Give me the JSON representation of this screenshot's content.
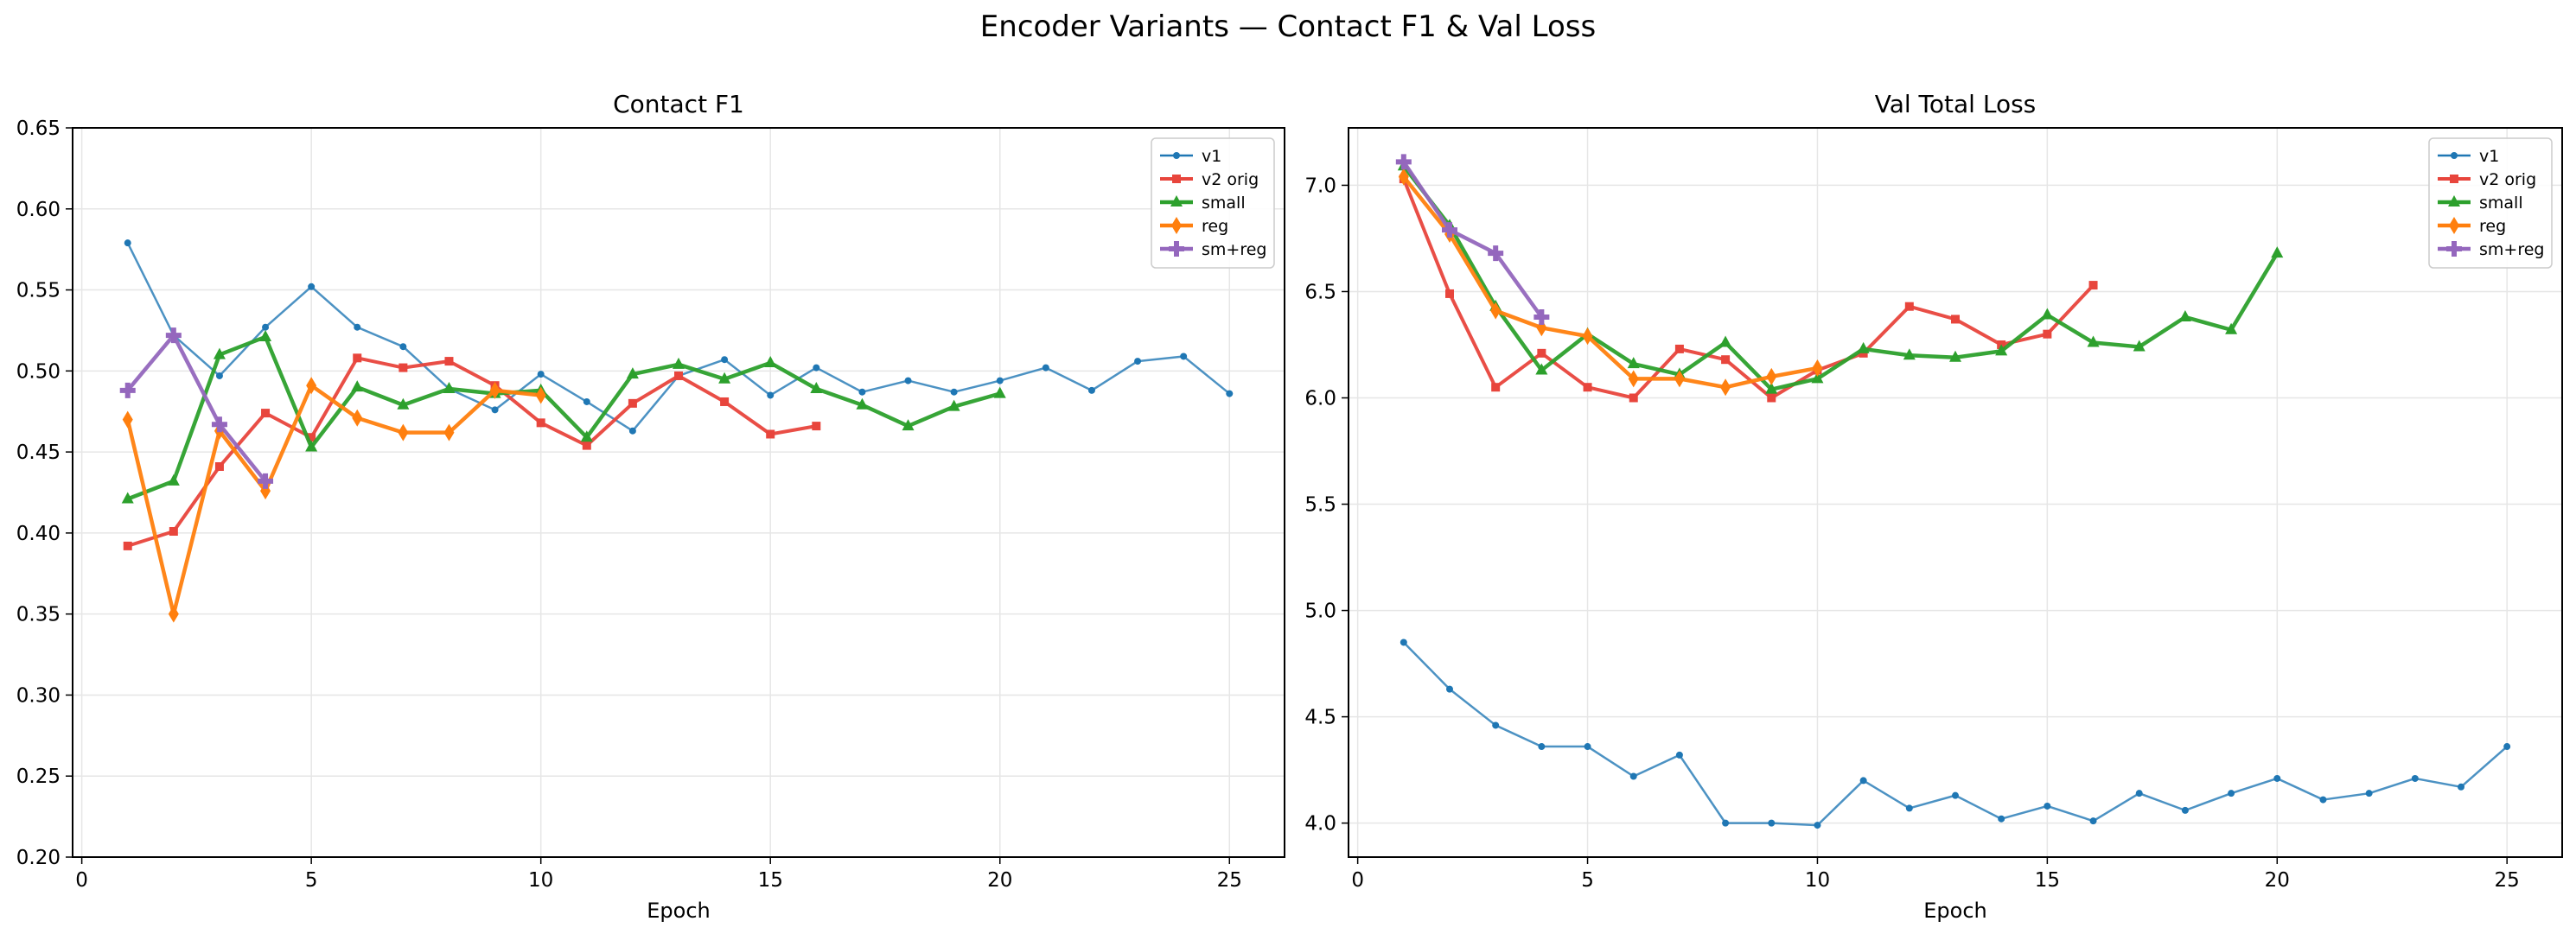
{
  "suptitle": "Encoder Variants — Contact F1 & Val Loss",
  "chart_data": [
    {
      "type": "line",
      "title": "Contact F1",
      "xlabel": "Epoch",
      "ylabel": "",
      "xlim": [
        -0.2,
        26.2
      ],
      "ylim": [
        0.2,
        0.65
      ],
      "xticks": [
        0,
        5,
        10,
        15,
        20,
        25
      ],
      "yticks": [
        0.2,
        0.25,
        0.3,
        0.35,
        0.4,
        0.45,
        0.5,
        0.55,
        0.6,
        0.65
      ],
      "ytick_decimals": 2,
      "grid": true,
      "legend": "top-right",
      "series": [
        {
          "name": "v1",
          "color": "#1f77b4",
          "marker": "circle",
          "x": [
            1,
            2,
            3,
            4,
            5,
            6,
            7,
            8,
            9,
            10,
            11,
            12,
            13,
            14,
            15,
            16,
            17,
            18,
            19,
            20,
            21,
            22,
            23,
            24,
            25
          ],
          "values": [
            0.579,
            0.522,
            0.497,
            0.527,
            0.552,
            0.527,
            0.515,
            0.489,
            0.476,
            0.498,
            0.481,
            0.463,
            0.497,
            0.507,
            0.485,
            0.502,
            0.487,
            0.494,
            0.487,
            0.494,
            0.502,
            0.488,
            0.506,
            0.509,
            0.486
          ]
        },
        {
          "name": "v2 orig",
          "color": "#e8453c",
          "marker": "square",
          "x": [
            1,
            2,
            3,
            4,
            5,
            6,
            7,
            8,
            9,
            10,
            11,
            12,
            13,
            14,
            15,
            16
          ],
          "values": [
            0.392,
            0.401,
            0.441,
            0.474,
            0.459,
            0.508,
            0.502,
            0.506,
            0.491,
            0.468,
            0.454,
            0.48,
            0.497,
            0.481,
            0.461,
            0.466
          ]
        },
        {
          "name": "small",
          "color": "#2ca02c",
          "marker": "triangle",
          "x": [
            1,
            2,
            3,
            4,
            5,
            6,
            7,
            8,
            9,
            10,
            11,
            12,
            13,
            14,
            15,
            16,
            17,
            18,
            19,
            20
          ],
          "values": [
            0.421,
            0.432,
            0.51,
            0.521,
            0.453,
            0.49,
            0.479,
            0.489,
            0.486,
            0.488,
            0.459,
            0.498,
            0.504,
            0.495,
            0.505,
            0.489,
            0.479,
            0.466,
            0.478,
            0.486
          ]
        },
        {
          "name": "reg",
          "color": "#ff7f0e",
          "marker": "diamond",
          "x": [
            1,
            2,
            3,
            4,
            5,
            6,
            7,
            8,
            9,
            10
          ],
          "values": [
            0.47,
            0.35,
            0.463,
            0.426,
            0.491,
            0.471,
            0.462,
            0.462,
            0.488,
            0.485
          ]
        },
        {
          "name": "sm+reg",
          "color": "#9467bd",
          "marker": "plus",
          "x": [
            1,
            2,
            3,
            4
          ],
          "values": [
            0.488,
            0.522,
            0.467,
            0.432
          ]
        }
      ]
    },
    {
      "type": "line",
      "title": "Val Total Loss",
      "xlabel": "Epoch",
      "ylabel": "",
      "xlim": [
        -0.2,
        26.2
      ],
      "ylim": [
        3.84,
        7.27
      ],
      "xticks": [
        0,
        5,
        10,
        15,
        20,
        25
      ],
      "yticks": [
        4.0,
        4.5,
        5.0,
        5.5,
        6.0,
        6.5,
        7.0
      ],
      "ytick_decimals": 1,
      "grid": true,
      "legend": "top-right",
      "series": [
        {
          "name": "v1",
          "color": "#1f77b4",
          "marker": "circle",
          "x": [
            1,
            2,
            3,
            4,
            5,
            6,
            7,
            8,
            9,
            10,
            11,
            12,
            13,
            14,
            15,
            16,
            17,
            18,
            19,
            20,
            21,
            22,
            23,
            24,
            25
          ],
          "values": [
            4.85,
            4.63,
            4.46,
            4.36,
            4.36,
            4.22,
            4.32,
            4.0,
            4.0,
            3.99,
            4.2,
            4.07,
            4.13,
            4.02,
            4.08,
            4.01,
            4.14,
            4.06,
            4.14,
            4.21,
            4.11,
            4.14,
            4.21,
            4.17,
            4.36
          ]
        },
        {
          "name": "v2 orig",
          "color": "#e8453c",
          "marker": "square",
          "x": [
            1,
            2,
            3,
            4,
            5,
            6,
            7,
            8,
            9,
            10,
            11,
            12,
            13,
            14,
            15,
            16
          ],
          "values": [
            7.03,
            6.49,
            6.05,
            6.21,
            6.05,
            6.0,
            6.23,
            6.18,
            6.0,
            6.13,
            6.21,
            6.43,
            6.37,
            6.25,
            6.3,
            6.53
          ]
        },
        {
          "name": "small",
          "color": "#2ca02c",
          "marker": "triangle",
          "x": [
            1,
            2,
            3,
            4,
            5,
            6,
            7,
            8,
            9,
            10,
            11,
            12,
            13,
            14,
            15,
            16,
            17,
            18,
            19,
            20
          ],
          "values": [
            7.09,
            6.81,
            6.43,
            6.13,
            6.3,
            6.16,
            6.11,
            6.26,
            6.04,
            6.09,
            6.23,
            6.2,
            6.19,
            6.22,
            6.39,
            6.26,
            6.24,
            6.38,
            6.32,
            6.68
          ]
        },
        {
          "name": "reg",
          "color": "#ff7f0e",
          "marker": "diamond",
          "x": [
            1,
            2,
            3,
            4,
            5,
            6,
            7,
            8,
            9,
            10
          ],
          "values": [
            7.04,
            6.77,
            6.41,
            6.33,
            6.29,
            6.09,
            6.09,
            6.05,
            6.1,
            6.14
          ]
        },
        {
          "name": "sm+reg",
          "color": "#9467bd",
          "marker": "plus",
          "x": [
            1,
            2,
            3,
            4
          ],
          "values": [
            7.11,
            6.79,
            6.68,
            6.38
          ]
        }
      ]
    }
  ]
}
